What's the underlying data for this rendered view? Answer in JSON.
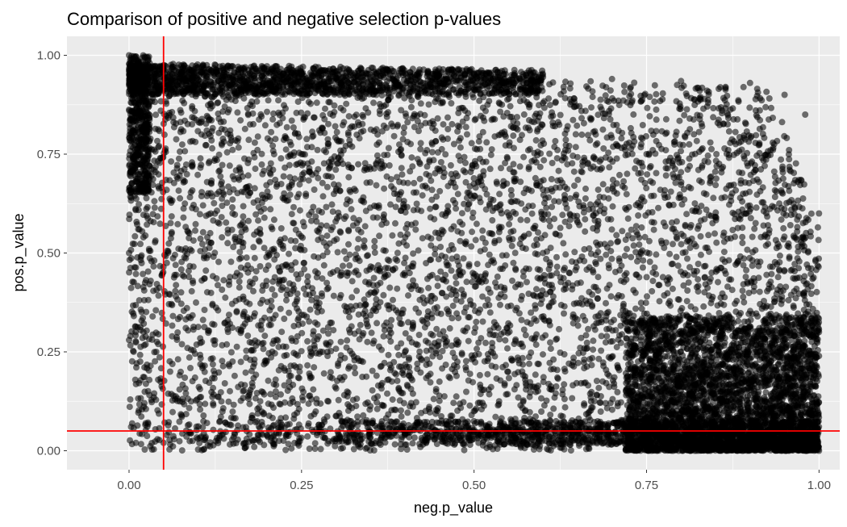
{
  "chart_data": {
    "type": "scatter",
    "title": "Comparison of positive and negative selection p-values",
    "xlabel": "neg.p_value",
    "ylabel": "pos.p_value",
    "xlim": [
      -0.09,
      1.03
    ],
    "ylim": [
      -0.048,
      1.048
    ],
    "x_ticks": [
      0.0,
      0.25,
      0.5,
      0.75,
      1.0
    ],
    "x_tick_labels": [
      "0.00",
      "0.25",
      "0.50",
      "0.75",
      "1.00"
    ],
    "y_ticks": [
      0.0,
      0.25,
      0.5,
      0.75,
      1.0
    ],
    "y_tick_labels": [
      "0.00",
      "0.25",
      "0.50",
      "0.75",
      "1.00"
    ],
    "grid": true,
    "panel_background": "#ebebeb",
    "point_color": "#000000",
    "point_alpha": 0.55,
    "reference_lines": [
      {
        "orientation": "vertical",
        "x": 0.05,
        "color": "#ff0000"
      },
      {
        "orientation": "horizontal",
        "y": 0.05,
        "color": "#ff0000"
      }
    ],
    "point_density_description": "dense cloud covering 0..1 on both axes; denser band near top-left, very dense block at neg>0.75 and pos<0.35",
    "series": [
      {
        "points": [
          [
            0.0,
            1.0
          ],
          [
            0.01,
            0.99
          ],
          [
            0.02,
            0.985
          ],
          [
            0.03,
            0.98
          ],
          [
            0.05,
            0.975
          ],
          [
            0.1,
            0.97
          ],
          [
            0.2,
            0.965
          ],
          [
            0.3,
            0.96
          ],
          [
            0.4,
            0.955
          ],
          [
            0.5,
            0.95
          ],
          [
            0.6,
            0.945
          ],
          [
            0.7,
            0.94
          ],
          [
            0.8,
            0.935
          ],
          [
            0.9,
            0.93
          ],
          [
            0.95,
            0.9
          ],
          [
            0.98,
            0.85
          ],
          [
            1.0,
            0.6
          ],
          [
            1.0,
            0.3
          ],
          [
            0.0,
            0.5
          ],
          [
            0.0,
            0.28
          ],
          [
            0.01,
            0.02
          ],
          [
            0.05,
            0.02
          ],
          [
            0.1,
            0.03
          ],
          [
            0.2,
            0.04
          ],
          [
            0.5,
            0.03
          ],
          [
            0.75,
            0.02
          ],
          [
            0.9,
            0.01
          ],
          [
            1.0,
            0.0
          ],
          [
            0.6,
            0.5
          ],
          [
            0.4,
            0.25
          ],
          [
            0.25,
            0.75
          ],
          [
            0.75,
            0.75
          ],
          [
            0.85,
            0.2
          ],
          [
            0.95,
            0.1
          ],
          [
            0.15,
            0.6
          ],
          [
            0.35,
            0.4
          ]
        ]
      }
    ]
  }
}
